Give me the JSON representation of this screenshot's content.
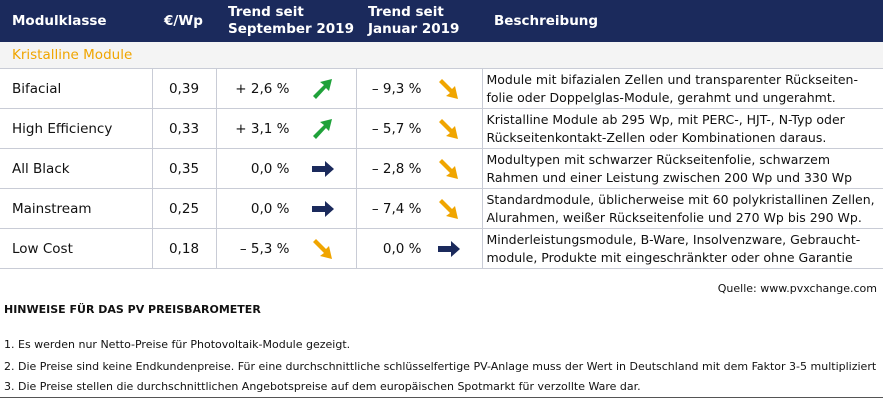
{
  "header": {
    "col_modul": "Modulklasse",
    "col_price": "€/Wp",
    "col_trend_sep_1": "Trend seit",
    "col_trend_sep_2": "September 2019",
    "col_trend_jan_1": "Trend seit",
    "col_trend_jan_2": "Januar 2019",
    "col_desc": "Beschreibung"
  },
  "section_label": "Kristalline Module",
  "rows": [
    {
      "name": "Bifacial",
      "price": "0,39",
      "trend_sep": "+ 2,6 %",
      "arrow_sep": "up",
      "trend_jan": "– 9,3 %",
      "arrow_jan": "down",
      "desc_1": "Module mit bifazialen Zellen und transparenter Rückseiten-",
      "desc_2": "folie oder Doppelglas-Module, gerahmt und ungerahmt."
    },
    {
      "name": "High Efficiency",
      "price": "0,33",
      "trend_sep": "+ 3,1 %",
      "arrow_sep": "up",
      "trend_jan": "– 5,7 %",
      "arrow_jan": "down",
      "desc_1": "Kristalline Module ab 295 Wp, mit PERC-, HJT-, N-Typ oder",
      "desc_2": "Rückseitenkontakt-Zellen oder Kombinationen daraus."
    },
    {
      "name": "All Black",
      "price": "0,35",
      "trend_sep": "0,0 %",
      "arrow_sep": "flat",
      "trend_jan": "– 2,8 %",
      "arrow_jan": "down",
      "desc_1": "Modultypen mit schwarzer Rückseitenfolie, schwarzem",
      "desc_2": "Rahmen und einer Leistung  zwischen 200 Wp und 330 Wp"
    },
    {
      "name": "Mainstream",
      "price": "0,25",
      "trend_sep": "0,0 %",
      "arrow_sep": "flat",
      "trend_jan": "– 7,4 %",
      "arrow_jan": "down",
      "desc_1": "Standardmodule, üblicherweise mit 60 polykristallinen Zellen,",
      "desc_2": "Alurahmen, weißer Rückseitenfolie und 270 Wp bis 290 Wp."
    },
    {
      "name": "Low Cost",
      "price": "0,18",
      "trend_sep": "– 5,3 %",
      "arrow_sep": "down",
      "trend_jan": "0,0 %",
      "arrow_jan": "flat",
      "desc_1": "Minderleistungsmodule, B-Ware, Insolvenzware, Gebraucht-",
      "desc_2": "module, Produkte mit eingeschränkter oder ohne Garantie"
    }
  ],
  "source": "Quelle: www.pvxchange.com",
  "notes_title": "HINWEISE FÜR DAS PV PREISBAROMETER",
  "notes": [
    "1.  Es werden nur Netto-Preise für Photovoltaik-Module gezeigt.",
    "2. Die Preise sind keine Endkundenpreise. Für eine durchschnittliche schlüsselfertige PV-Anlage muss der Wert in Deutschland mit dem Faktor 3-5 multipliziert",
    "3. Die Preise stellen die durchschnittlichen Angebotspreise auf dem europäischen Spotmarkt für verzollte Ware dar."
  ],
  "colors": {
    "header_bg": "#1b2a5c",
    "section_text": "#f0a500",
    "arrow_up": "#1fa23a",
    "arrow_down": "#f0a500",
    "arrow_flat": "#1b2a5c"
  }
}
